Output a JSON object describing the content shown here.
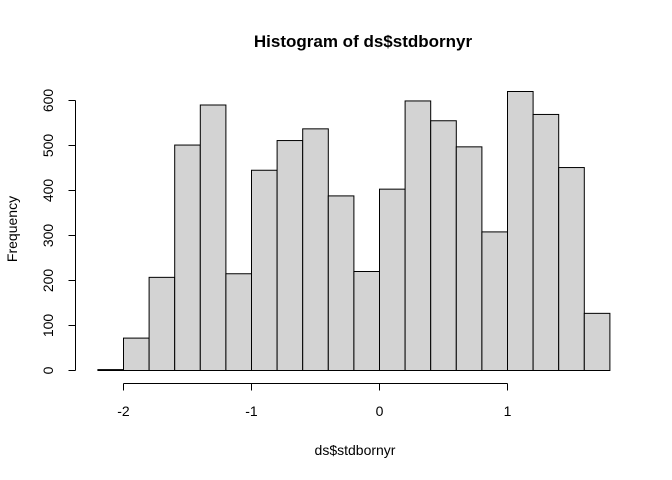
{
  "chart_data": {
    "type": "bar",
    "title": "Histogram of ds$stdbornyr",
    "xlabel": "ds$stdbornyr",
    "ylabel": "Frequency",
    "bin_width": 0.2,
    "bins": [
      {
        "start": -2.2,
        "end": -2.0,
        "count": 2
      },
      {
        "start": -2.0,
        "end": -1.8,
        "count": 72
      },
      {
        "start": -1.8,
        "end": -1.6,
        "count": 207
      },
      {
        "start": -1.6,
        "end": -1.4,
        "count": 501
      },
      {
        "start": -1.4,
        "end": -1.2,
        "count": 590
      },
      {
        "start": -1.2,
        "end": -1.0,
        "count": 215
      },
      {
        "start": -1.0,
        "end": -0.8,
        "count": 445
      },
      {
        "start": -0.8,
        "end": -0.6,
        "count": 511
      },
      {
        "start": -0.6,
        "end": -0.4,
        "count": 537
      },
      {
        "start": -0.4,
        "end": -0.2,
        "count": 388
      },
      {
        "start": -0.2,
        "end": 0.0,
        "count": 220
      },
      {
        "start": 0.0,
        "end": 0.2,
        "count": 403
      },
      {
        "start": 0.2,
        "end": 0.4,
        "count": 599
      },
      {
        "start": 0.4,
        "end": 0.6,
        "count": 555
      },
      {
        "start": 0.6,
        "end": 0.8,
        "count": 497
      },
      {
        "start": 0.8,
        "end": 1.0,
        "count": 308
      },
      {
        "start": 1.0,
        "end": 1.2,
        "count": 620
      },
      {
        "start": 1.2,
        "end": 1.4,
        "count": 569
      },
      {
        "start": 1.4,
        "end": 1.6,
        "count": 451
      },
      {
        "start": 1.6,
        "end": 1.8,
        "count": 127
      }
    ],
    "xlim": [
      -2.2,
      1.8
    ],
    "ylim": [
      0,
      620
    ],
    "x_ticks": [
      {
        "value": -2,
        "label": "-2"
      },
      {
        "value": -1,
        "label": "-1"
      },
      {
        "value": 0,
        "label": "0"
      },
      {
        "value": 1,
        "label": "1"
      }
    ],
    "y_ticks": [
      {
        "value": 0,
        "label": "0"
      },
      {
        "value": 100,
        "label": "100"
      },
      {
        "value": 200,
        "label": "200"
      },
      {
        "value": 300,
        "label": "300"
      },
      {
        "value": 400,
        "label": "400"
      },
      {
        "value": 500,
        "label": "500"
      },
      {
        "value": 600,
        "label": "600"
      }
    ],
    "grid": false,
    "legend": "none",
    "bar_fill": "#d3d3d3",
    "bar_stroke": "#000000"
  }
}
